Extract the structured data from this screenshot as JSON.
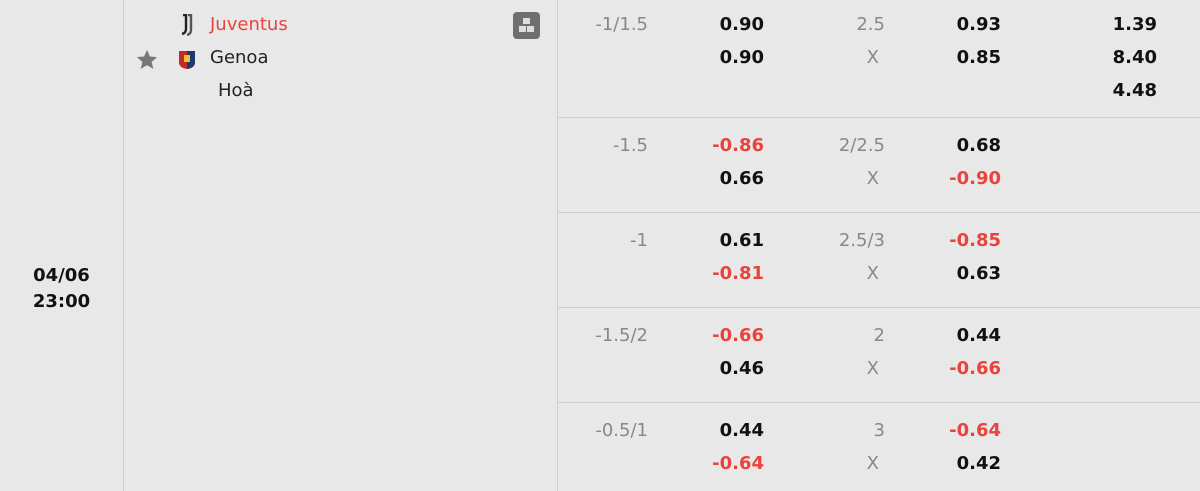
{
  "match": {
    "date": "04/06",
    "time": "23:00",
    "home": "Juventus",
    "away": "Genoa",
    "draw": "Hoà",
    "favorite_icon": "star-icon",
    "stats_icon": "stats-icon"
  },
  "colors": {
    "negative": "#e8443e",
    "home_highlight": "#e8443e"
  },
  "odds_rows": [
    {
      "handicap": "-1/1.5",
      "home": "0.90",
      "away": "0.90",
      "total": "2.5",
      "draw_label": "X",
      "over": "0.93",
      "under": "0.85",
      "x12": [
        "1.39",
        "8.40",
        "4.48"
      ]
    },
    {
      "handicap": "-1.5",
      "home": "-0.86",
      "away": "0.66",
      "total": "2/2.5",
      "draw_label": "X",
      "over": "0.68",
      "under": "-0.90"
    },
    {
      "handicap": "-1",
      "home": "0.61",
      "away": "-0.81",
      "total": "2.5/3",
      "draw_label": "X",
      "over": "-0.85",
      "under": "0.63"
    },
    {
      "handicap": "-1.5/2",
      "home": "-0.66",
      "away": "0.46",
      "total": "2",
      "draw_label": "X",
      "over": "0.44",
      "under": "-0.66"
    },
    {
      "handicap": "-0.5/1",
      "home": "0.44",
      "away": "-0.64",
      "total": "3",
      "draw_label": "X",
      "over": "-0.64",
      "under": "0.42"
    }
  ]
}
